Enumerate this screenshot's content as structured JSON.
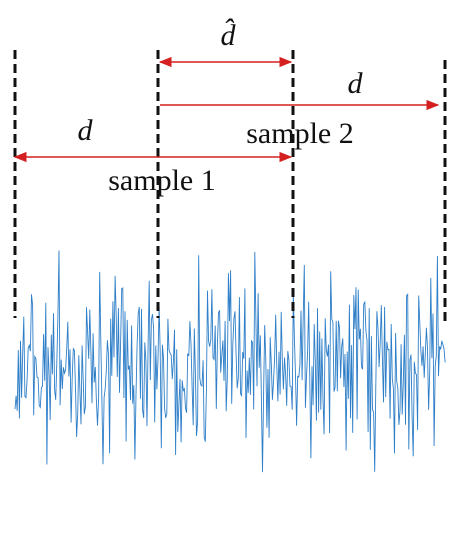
{
  "annotations": [
    {
      "label": "d̂"
    },
    {
      "label": "d"
    },
    {
      "label": "sample 2"
    },
    {
      "label": "d"
    },
    {
      "label": "sample 1"
    }
  ]
}
